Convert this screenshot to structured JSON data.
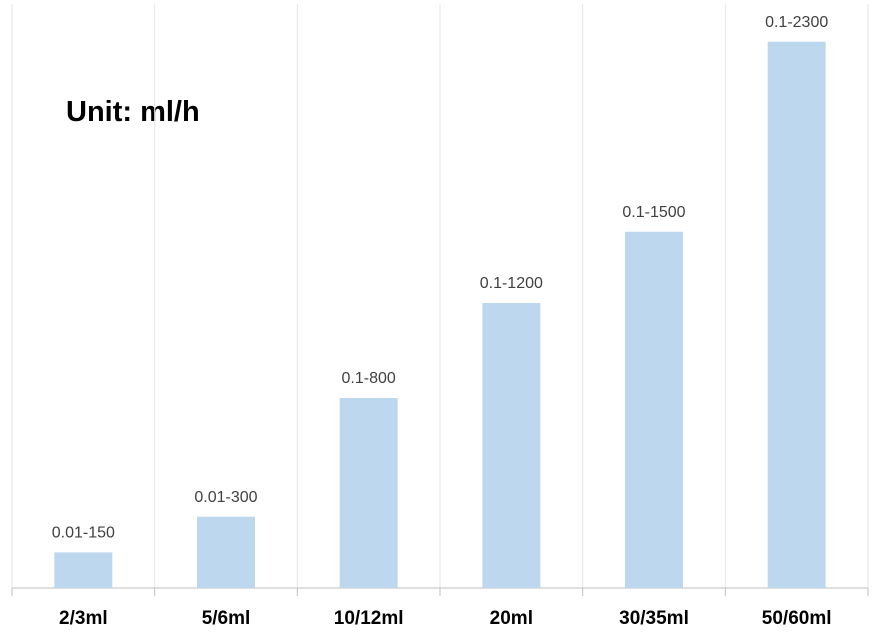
{
  "colors": {
    "bar": "#BDD7EE",
    "grid": "#E6E6E6",
    "axis": "#BFBFBF",
    "data_label": "#404040",
    "tick_label": "#000000"
  },
  "chart_data": {
    "type": "bar",
    "annotation": "Unit: ml/h",
    "categories": [
      "2/3ml",
      "5/6ml",
      "10/12ml",
      "20ml",
      "30/35ml",
      "50/60ml"
    ],
    "data_labels": [
      "0.01-150",
      "0.01-300",
      "0.1-800",
      "0.1-1200",
      "0.1-1500",
      "0.1-2300"
    ],
    "values": [
      150,
      300,
      800,
      1200,
      1500,
      2300
    ],
    "ylim": [
      0,
      2400
    ],
    "grid": "vertical category separators",
    "xlabel": "",
    "ylabel": ""
  }
}
